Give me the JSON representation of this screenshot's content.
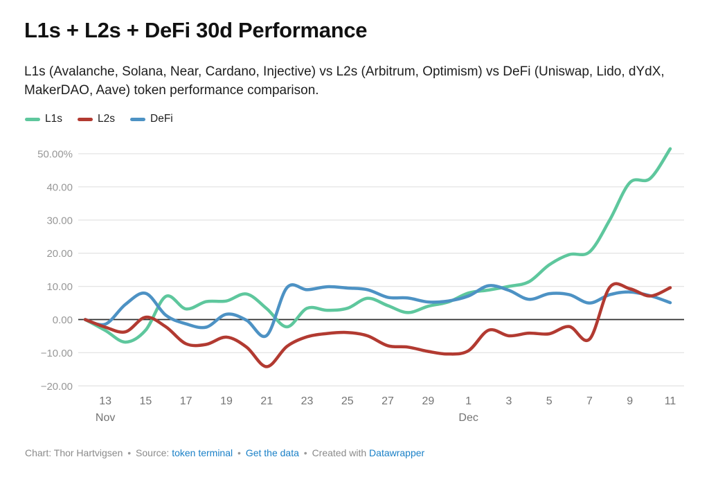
{
  "header": {
    "title": "L1s + L2s + DeFi 30d Performance",
    "subtitle": "L1s (Avalanche, Solana, Near, Cardano, Injective) vs L2s (Arbitrum, Optimism) vs DeFi (Uniswap, Lido, dYdX, MakerDAO, Aave) token performance comparison."
  },
  "footer": {
    "chart_credit": "Chart: Thor Hartvigsen",
    "sep": "•",
    "source_label": "Source:",
    "source_link": "token terminal",
    "get_data_link": "Get the data",
    "created_with": "Created with",
    "tool_link": "Datawrapper"
  },
  "chart_data": {
    "type": "line",
    "title": "L1s + L2s + DeFi 30d Performance",
    "x": [
      "Nov 12",
      "Nov 13",
      "Nov 14",
      "Nov 15",
      "Nov 16",
      "Nov 17",
      "Nov 18",
      "Nov 19",
      "Nov 20",
      "Nov 21",
      "Nov 22",
      "Nov 23",
      "Nov 24",
      "Nov 25",
      "Nov 26",
      "Nov 27",
      "Nov 28",
      "Nov 29",
      "Nov 30",
      "Dec 1",
      "Dec 2",
      "Dec 3",
      "Dec 4",
      "Dec 5",
      "Dec 6",
      "Dec 7",
      "Dec 8",
      "Dec 9",
      "Dec 10",
      "Dec 11"
    ],
    "ylim": [
      -20,
      50
    ],
    "grid": "horizontal",
    "legend_position": "top-left",
    "unit": "%",
    "series": [
      {
        "name": "L1s",
        "color": "#5ec79d",
        "values": [
          0,
          -3.3,
          -6.8,
          -3.2,
          7.0,
          3.2,
          5.4,
          5.6,
          7.7,
          3.3,
          -2.2,
          3.4,
          2.8,
          3.4,
          6.4,
          4.2,
          2.1,
          4.0,
          5.3,
          8.0,
          8.9,
          10.0,
          11.4,
          16.5,
          19.6,
          20.4,
          30.0,
          41.3,
          42.5,
          51.5
        ]
      },
      {
        "name": "L2s",
        "color": "#b23a31",
        "values": [
          0,
          -2.3,
          -3.7,
          0.7,
          -2.2,
          -7.3,
          -7.5,
          -5.3,
          -8.3,
          -14.2,
          -8.1,
          -5.2,
          -4.2,
          -3.9,
          -4.9,
          -7.9,
          -8.3,
          -9.6,
          -10.4,
          -9.4,
          -3.2,
          -4.9,
          -4.1,
          -4.3,
          -2.1,
          -5.9,
          9.7,
          9.3,
          7.1,
          9.6
        ]
      },
      {
        "name": "DeFi",
        "color": "#4d92c4",
        "values": [
          0,
          -1.4,
          4.6,
          7.9,
          1.3,
          -1.3,
          -2.3,
          1.6,
          -0.2,
          -4.8,
          9.6,
          9.0,
          9.9,
          9.5,
          9.0,
          6.7,
          6.5,
          5.3,
          5.6,
          7.1,
          10.2,
          8.8,
          6.1,
          7.8,
          7.5,
          5.0,
          7.5,
          8.3,
          7.2,
          5.1
        ]
      }
    ],
    "draw_order": [
      0,
      2,
      1
    ],
    "y_ticks": [
      {
        "v": 50,
        "label": "50.00%"
      },
      {
        "v": 40,
        "label": "40.00"
      },
      {
        "v": 30,
        "label": "30.00"
      },
      {
        "v": 20,
        "label": "20.00"
      },
      {
        "v": 10,
        "label": "10.00"
      },
      {
        "v": 0,
        "label": "0.00"
      },
      {
        "v": -10,
        "label": "−10.00"
      },
      {
        "v": -20,
        "label": "−20.00"
      }
    ],
    "x_ticks": [
      {
        "i": 1,
        "label": "13",
        "month": "Nov"
      },
      {
        "i": 3,
        "label": "15"
      },
      {
        "i": 5,
        "label": "17"
      },
      {
        "i": 7,
        "label": "19"
      },
      {
        "i": 9,
        "label": "21"
      },
      {
        "i": 11,
        "label": "23"
      },
      {
        "i": 13,
        "label": "25"
      },
      {
        "i": 15,
        "label": "27"
      },
      {
        "i": 17,
        "label": "29"
      },
      {
        "i": 19,
        "label": "1",
        "month": "Dec"
      },
      {
        "i": 21,
        "label": "3"
      },
      {
        "i": 23,
        "label": "5"
      },
      {
        "i": 25,
        "label": "7"
      },
      {
        "i": 27,
        "label": "9"
      },
      {
        "i": 29,
        "label": "11"
      }
    ]
  }
}
